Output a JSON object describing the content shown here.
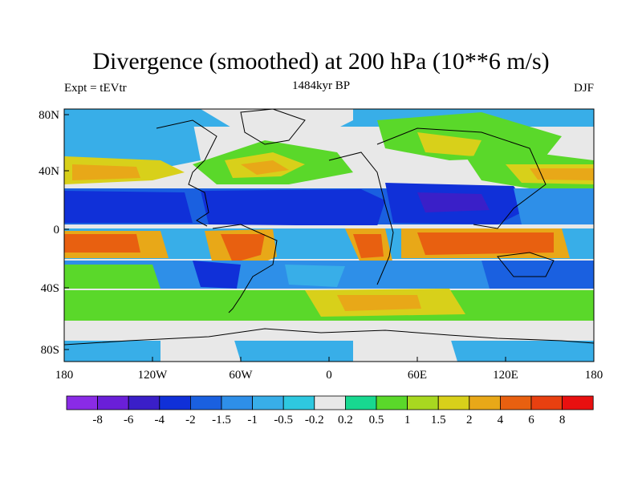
{
  "title": "Divergence (smoothed) at 200 hPa (10**6 m/s)",
  "subtitle_left": "Expt = tEVtr",
  "subtitle_center": "1484kyr BP",
  "subtitle_right": "DJF",
  "chart_data": {
    "type": "heatmap",
    "variable": "Divergence (smoothed)",
    "level": "200 hPa",
    "units": "10**6 m/s",
    "season": "DJF",
    "experiment": "tEVtr",
    "period": "1484kyr BP",
    "x_ticks": [
      "180",
      "120W",
      "60W",
      "0",
      "60E",
      "120E",
      "180"
    ],
    "y_ticks": [
      "80N",
      "40N",
      "0",
      "40S",
      "80S"
    ],
    "xlim": [
      -180,
      180
    ],
    "ylim": [
      -90,
      90
    ],
    "colorbar_levels": [
      "-8",
      "-6",
      "-4",
      "-2",
      "-1.5",
      "-1",
      "-0.5",
      "-0.2",
      "0.2",
      "0.5",
      "1",
      "1.5",
      "2",
      "4",
      "6",
      "8"
    ],
    "colorbar_colors": [
      "#8a2be6",
      "#6a1fd8",
      "#3a1fc8",
      "#1030d8",
      "#1a60e0",
      "#2e8fe8",
      "#38aee8",
      "#2ec8e0",
      "#e8e8e8",
      "#18d890",
      "#5ad82a",
      "#a8d820",
      "#d8d01a",
      "#e8a818",
      "#e86010",
      "#e84010",
      "#e81010"
    ]
  }
}
